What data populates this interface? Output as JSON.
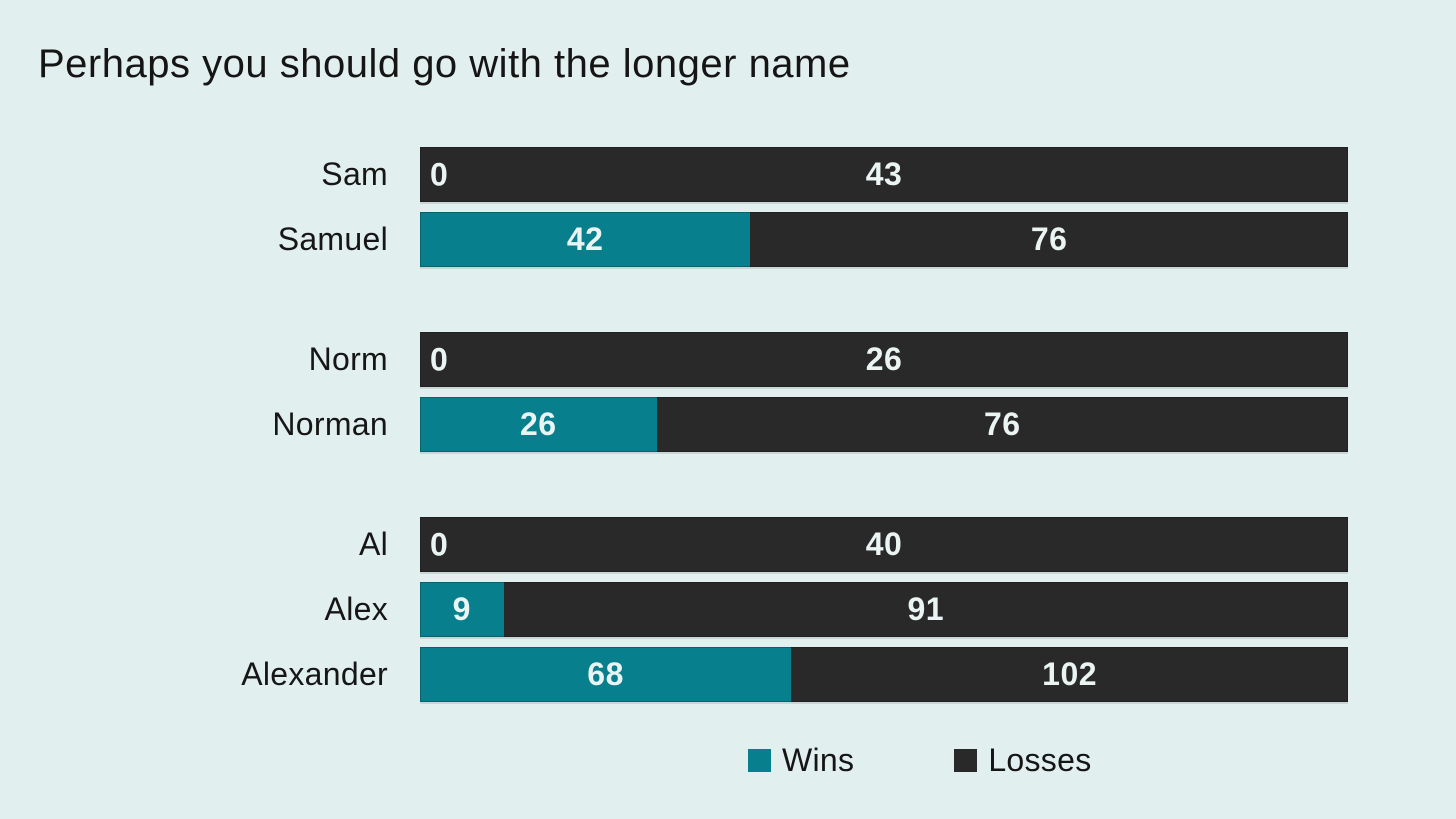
{
  "title": "Perhaps you should go with the longer name",
  "colors": {
    "background": "#e1efee",
    "wins": "#077f8c",
    "losses": "#292929",
    "value_text": "#e9f4f3",
    "text": "#151515"
  },
  "chart_data": {
    "type": "bar",
    "orientation": "horizontal",
    "stacked": true,
    "normalized_rows": true,
    "title": "Perhaps you should go with the longer name",
    "categories": [
      "Sam",
      "Samuel",
      "Norm",
      "Norman",
      "Al",
      "Alex",
      "Alexander"
    ],
    "groups": [
      [
        "Sam",
        "Samuel"
      ],
      [
        "Norm",
        "Norman"
      ],
      [
        "Al",
        "Alex",
        "Alexander"
      ]
    ],
    "series": [
      {
        "name": "Wins",
        "color": "#077f8c",
        "values": [
          0,
          42,
          0,
          26,
          0,
          9,
          68
        ]
      },
      {
        "name": "Losses",
        "color": "#292929",
        "values": [
          43,
          76,
          26,
          76,
          40,
          91,
          102
        ]
      }
    ],
    "grid": false,
    "axis_labels": false,
    "legend_position": "bottom"
  }
}
